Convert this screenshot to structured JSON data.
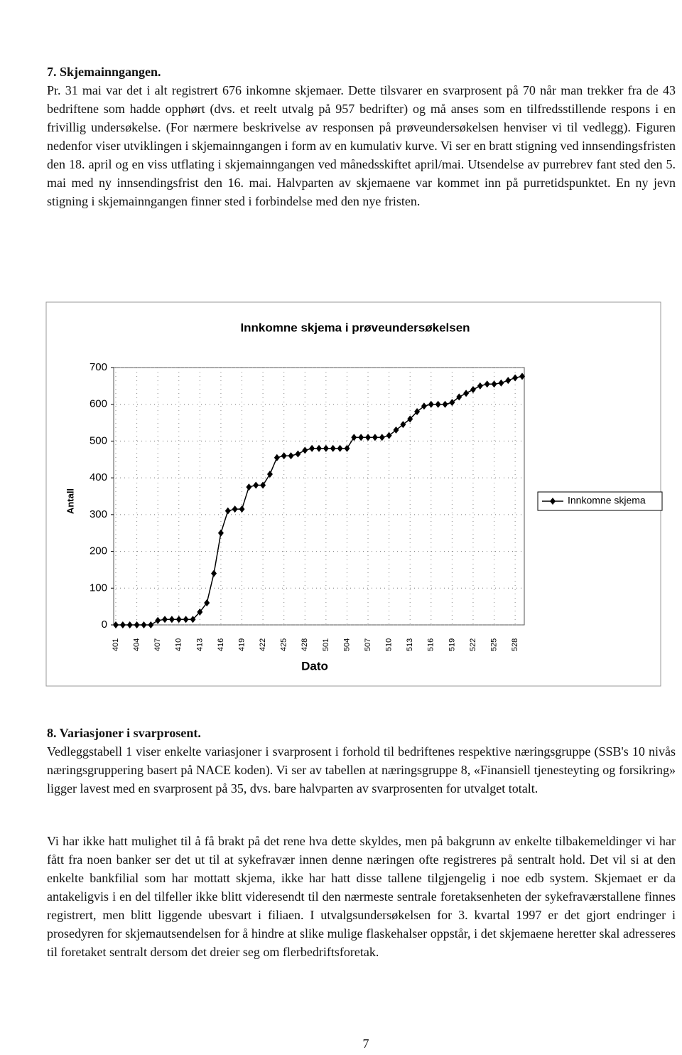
{
  "section7": {
    "heading": "7. Skjemainngangen.",
    "paragraph": "Pr. 31 mai var det i alt registrert 676 inkomne skjemaer. Dette tilsvarer en svarprosent på 70 når man trekker fra de 43 bedriftene som hadde opphørt (dvs. et reelt utvalg på 957 bedrifter) og må anses som en tilfredsstillende respons i en frivillig undersøkelse. (For nærmere beskrivelse av responsen på prøveundersøkelsen henviser vi til vedlegg). Figuren nedenfor viser utviklingen i skjemainngangen i form av en kumulativ kurve. Vi ser en bratt stigning ved innsendingsfristen den 18. april og en viss utflating i skjemainngangen ved månedsskiftet april/mai. Utsendelse av purrebrev fant sted den 5. mai med ny innsendingsfrist den 16. mai. Halvparten av skjemaene var kommet inn på purretidspunktet. En ny jevn stigning i skjemainngangen finner sted i forbindelse med den nye fristen."
  },
  "chart_data": {
    "type": "line",
    "title": "Innkomne skjema i prøveundersøkelsen",
    "x_label": "Dato",
    "y_label": "Antall",
    "categories": [
      "401",
      null,
      null,
      "404",
      null,
      null,
      "407",
      null,
      null,
      "410",
      null,
      null,
      "413",
      null,
      null,
      "416",
      null,
      null,
      "419",
      null,
      null,
      "422",
      null,
      null,
      "425",
      null,
      null,
      "428",
      null,
      null,
      "501",
      null,
      null,
      "504",
      null,
      null,
      "507",
      null,
      null,
      "510",
      null,
      null,
      "513",
      null,
      null,
      "516",
      null,
      null,
      "519",
      null,
      null,
      "522",
      null,
      null,
      "525",
      null,
      null,
      "528",
      null
    ],
    "series": [
      {
        "name": "Innkomne skjema",
        "color": "#000000",
        "values": [
          0,
          0,
          0,
          0,
          0,
          0,
          12,
          15,
          15,
          15,
          15,
          15,
          35,
          60,
          140,
          250,
          310,
          315,
          315,
          375,
          380,
          380,
          410,
          455,
          460,
          460,
          465,
          475,
          480,
          480,
          480,
          480,
          480,
          480,
          510,
          510,
          510,
          510,
          510,
          515,
          530,
          545,
          560,
          580,
          595,
          600,
          600,
          600,
          605,
          620,
          630,
          640,
          650,
          655,
          655,
          658,
          665,
          672,
          676
        ]
      }
    ],
    "ylim": [
      0,
      700
    ],
    "yticks": [
      0,
      100,
      200,
      300,
      400,
      500,
      600,
      700
    ],
    "grid": true,
    "legend": "right"
  },
  "section8": {
    "heading": "8. Variasjoner i svarprosent.",
    "paragraphs": [
      "Vedleggstabell 1 viser enkelte variasjoner i svarprosent i forhold til bedriftenes respektive næringsgruppe (SSB's 10 nivås næringsgruppering basert på NACE koden). Vi ser av tabellen at næringsgruppe 8, «Finansiell tjenesteyting og forsikring» ligger lavest med en svarprosent på 35, dvs. bare halvparten av svarprosenten for utvalget totalt.",
      "Vi har ikke hatt mulighet til å få brakt på det rene hva dette skyldes, men på bakgrunn av enkelte tilbakemeldinger vi har fått fra noen banker ser det ut til at sykefravær innen denne næringen ofte registreres på sentralt hold. Det vil si at den enkelte bankfilial som har mottatt skjema, ikke har hatt disse tallene tilgjengelig i noe edb system. Skjemaet er da antakeligvis i en del tilfeller ikke blitt videresendt til den nærmeste sentrale foretaksenheten der sykefraværstallene finnes registrert, men blitt liggende ubesvart i filiaen. I utvalgsundersøkelsen for 3. kvartal 1997 er det gjort endringer i prosedyren for skjemautsendelsen for å hindre at slike mulige flaskehalser oppstår, i det skjemaene heretter skal adresseres til foretaket sentralt dersom det dreier seg om flerbedriftsforetak."
    ]
  },
  "page_number": "7"
}
